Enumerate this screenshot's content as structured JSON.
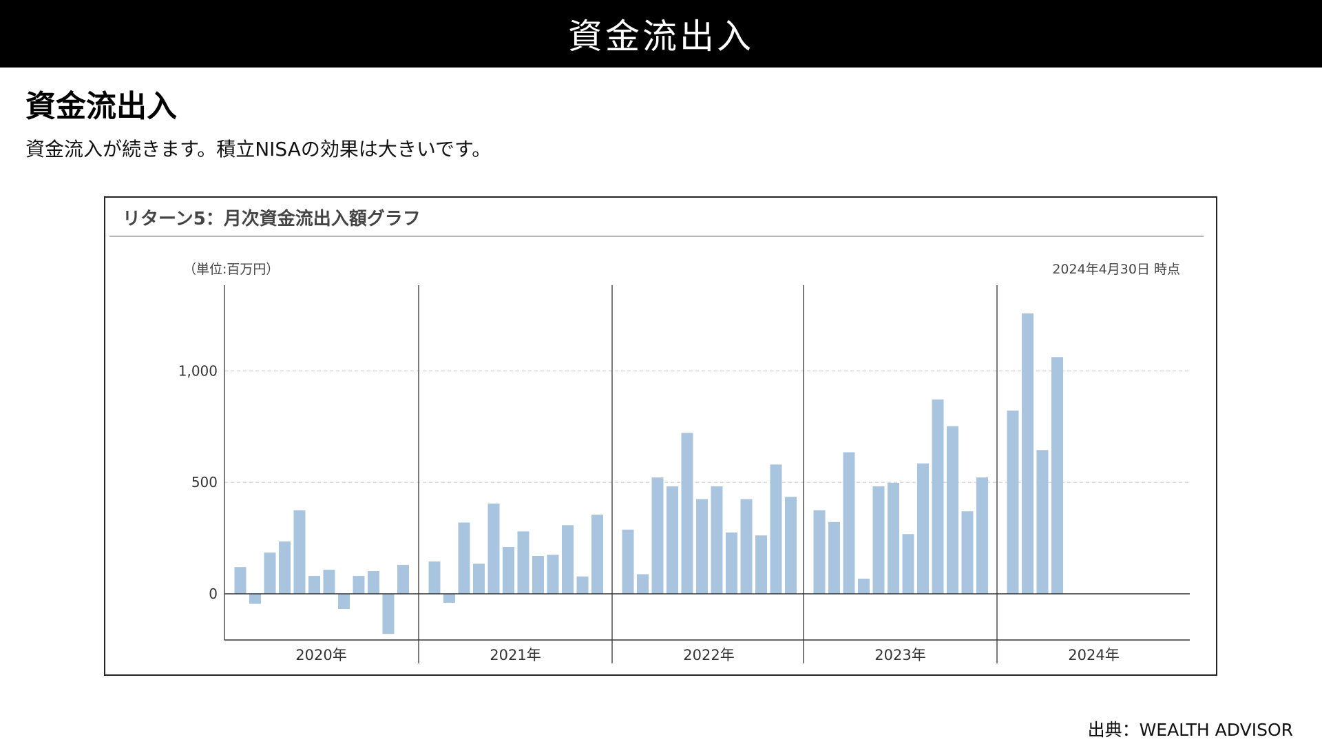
{
  "header": {
    "title": "資金流出入"
  },
  "section": {
    "heading": "資金流出入",
    "body": "資金流入が続きます。積立NISAの効果は大きいです。"
  },
  "source": "出典：WEALTH ADVISOR",
  "chart_data": {
    "type": "bar",
    "title": "リターン5：月次資金流出入額グラフ",
    "unit_label": "（単位:百万円）",
    "as_of": "2024年4月30日 時点",
    "bar_color": "#a9c4df",
    "y_ticks": [
      {
        "value": 1000,
        "label": "1,000"
      },
      {
        "value": 500,
        "label": "500"
      },
      {
        "value": 0,
        "label": "0"
      }
    ],
    "ylim": [
      -200,
      1380
    ],
    "grid": "horizontal dashed at 500 and 1,000",
    "groups": [
      {
        "label": "2020年",
        "values": [
          120,
          -45,
          185,
          235,
          375,
          80,
          108,
          -68,
          80,
          102,
          -180,
          130
        ]
      },
      {
        "label": "2021年",
        "values": [
          145,
          -40,
          320,
          135,
          405,
          210,
          280,
          170,
          175,
          308,
          78,
          355
        ]
      },
      {
        "label": "2022年",
        "values": [
          288,
          88,
          522,
          482,
          722,
          425,
          482,
          275,
          425,
          262,
          580,
          435
        ]
      },
      {
        "label": "2023年",
        "values": [
          375,
          322,
          635,
          68,
          482,
          498,
          268,
          585,
          872,
          752,
          370,
          522
        ]
      },
      {
        "label": "2024年",
        "values": [
          822,
          1258,
          645,
          1062
        ]
      }
    ]
  }
}
